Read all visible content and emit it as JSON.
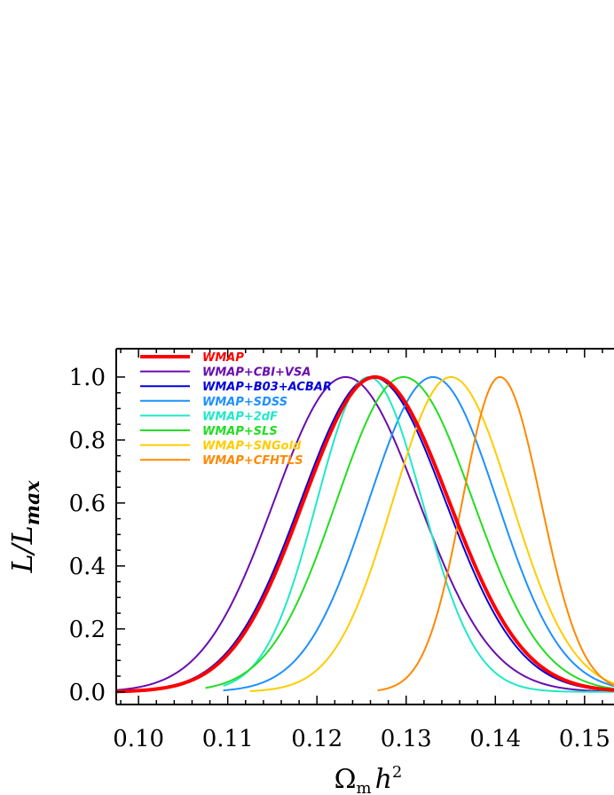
{
  "chart_data": {
    "type": "line",
    "xlabel": "Ω_m h²",
    "xlabel_base": "Ω",
    "xlabel_sub": "m",
    "xlabel_var": "h",
    "xlabel_sup": "2",
    "ylabel": "L/L_max",
    "ylabel_main": "L/L",
    "ylabel_sub": "max",
    "xlim": [
      0.0975,
      0.1533
    ],
    "ylim": [
      -0.04,
      1.09
    ],
    "x_ticks": [
      "0.10",
      "0.11",
      "0.12",
      "0.13",
      "0.14",
      "0.15"
    ],
    "y_ticks": [
      "0.0",
      "0.2",
      "0.4",
      "0.6",
      "0.8",
      "1.0"
    ],
    "legend_position": "top-left",
    "series": [
      {
        "name": "WMAP",
        "color": "#ff0000",
        "width": 4,
        "peak": 0.1265,
        "sigma_left": 0.008,
        "sigma_right": 0.0083,
        "x_start": 0.0975,
        "x_end": 0.1533
      },
      {
        "name": "WMAP+CBI+VSA",
        "color": "#6a0dad",
        "width": 2,
        "peak": 0.1232,
        "sigma_left": 0.008,
        "sigma_right": 0.0082,
        "x_start": 0.0975,
        "x_end": 0.1533
      },
      {
        "name": "WMAP+B03+ACBAR",
        "color": "#0000e0",
        "width": 2,
        "peak": 0.1262,
        "sigma_left": 0.008,
        "sigma_right": 0.0082,
        "x_start": 0.0975,
        "x_end": 0.1533
      },
      {
        "name": "WMAP+SDSS",
        "color": "#1e90ff",
        "width": 2,
        "peak": 0.133,
        "sigma_left": 0.0072,
        "sigma_right": 0.0072,
        "x_start": 0.1095,
        "x_end": 0.1533
      },
      {
        "name": "WMAP+2dF",
        "color": "#20e8c8",
        "width": 2,
        "peak": 0.1258,
        "sigma_left": 0.0058,
        "sigma_right": 0.006,
        "x_start": 0.1095,
        "x_end": 0.1533
      },
      {
        "name": "WMAP+SLS",
        "color": "#22dd22",
        "width": 2,
        "peak": 0.1297,
        "sigma_left": 0.0075,
        "sigma_right": 0.0078,
        "x_start": 0.1075,
        "x_end": 0.1533
      },
      {
        "name": "WMAP+SNGold",
        "color": "#ffcc00",
        "width": 2,
        "peak": 0.135,
        "sigma_left": 0.0065,
        "sigma_right": 0.0068,
        "x_start": 0.1125,
        "x_end": 0.1533
      },
      {
        "name": "WMAP+CFHTLS",
        "color": "#ff8800",
        "width": 2,
        "peak": 0.1405,
        "sigma_left": 0.0042,
        "sigma_right": 0.0046,
        "x_start": 0.1268,
        "x_end": 0.1533
      }
    ]
  }
}
